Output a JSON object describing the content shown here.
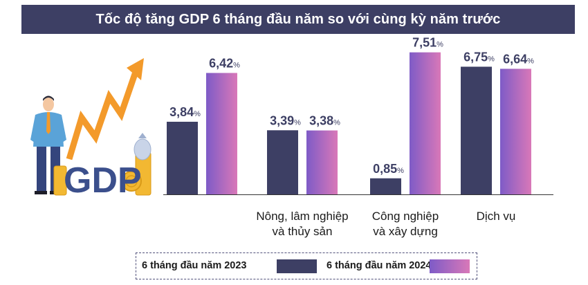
{
  "title": "Tốc độ tăng GDP 6 tháng đầu năm so với cùng kỳ năm trước",
  "colors": {
    "title_bg": "#3d3f64",
    "series_2023": "#3d3f64",
    "series_2024_from": "#7e5bc7",
    "series_2024_to": "#d978b8",
    "arrow": "#f39a2b",
    "gold": "#f2b832",
    "gdp_text": "#3b4f8c"
  },
  "illustration": {
    "text": "GDP",
    "icons": [
      "businessman-icon",
      "rising-arrow-icon",
      "coin-stack-icon",
      "money-bag-icon"
    ]
  },
  "legend": {
    "label_2023": "6 tháng đầu năm 2023",
    "label_2024": "6 tháng đầu năm 2024"
  },
  "chart_data": {
    "type": "bar",
    "title": "Tốc độ tăng GDP 6 tháng đầu năm so với cùng kỳ năm trước",
    "categories": [
      "",
      "Nông, lâm nghiệp và thủy sản",
      "Công nghiệp và xây dựng",
      "Dịch vụ"
    ],
    "category_lines": [
      [],
      [
        "Nông, lâm nghiệp",
        "và thủy sản"
      ],
      [
        "Công nghiệp",
        "và xây dựng"
      ],
      [
        "Dịch vụ"
      ]
    ],
    "unit": "%",
    "series": [
      {
        "name": "6 tháng đầu năm 2023",
        "values": [
          3.84,
          3.39,
          0.85,
          6.75
        ],
        "labels": [
          "3,84",
          "3,39",
          "0,85",
          "6,75"
        ]
      },
      {
        "name": "6 tháng đầu năm 2024",
        "values": [
          6.42,
          3.38,
          7.51,
          6.64
        ],
        "labels": [
          "6,42",
          "3,38",
          "7,51",
          "6,64"
        ]
      }
    ],
    "ylim": [
      0,
      7.9
    ],
    "grid": false,
    "legend_position": "bottom"
  }
}
